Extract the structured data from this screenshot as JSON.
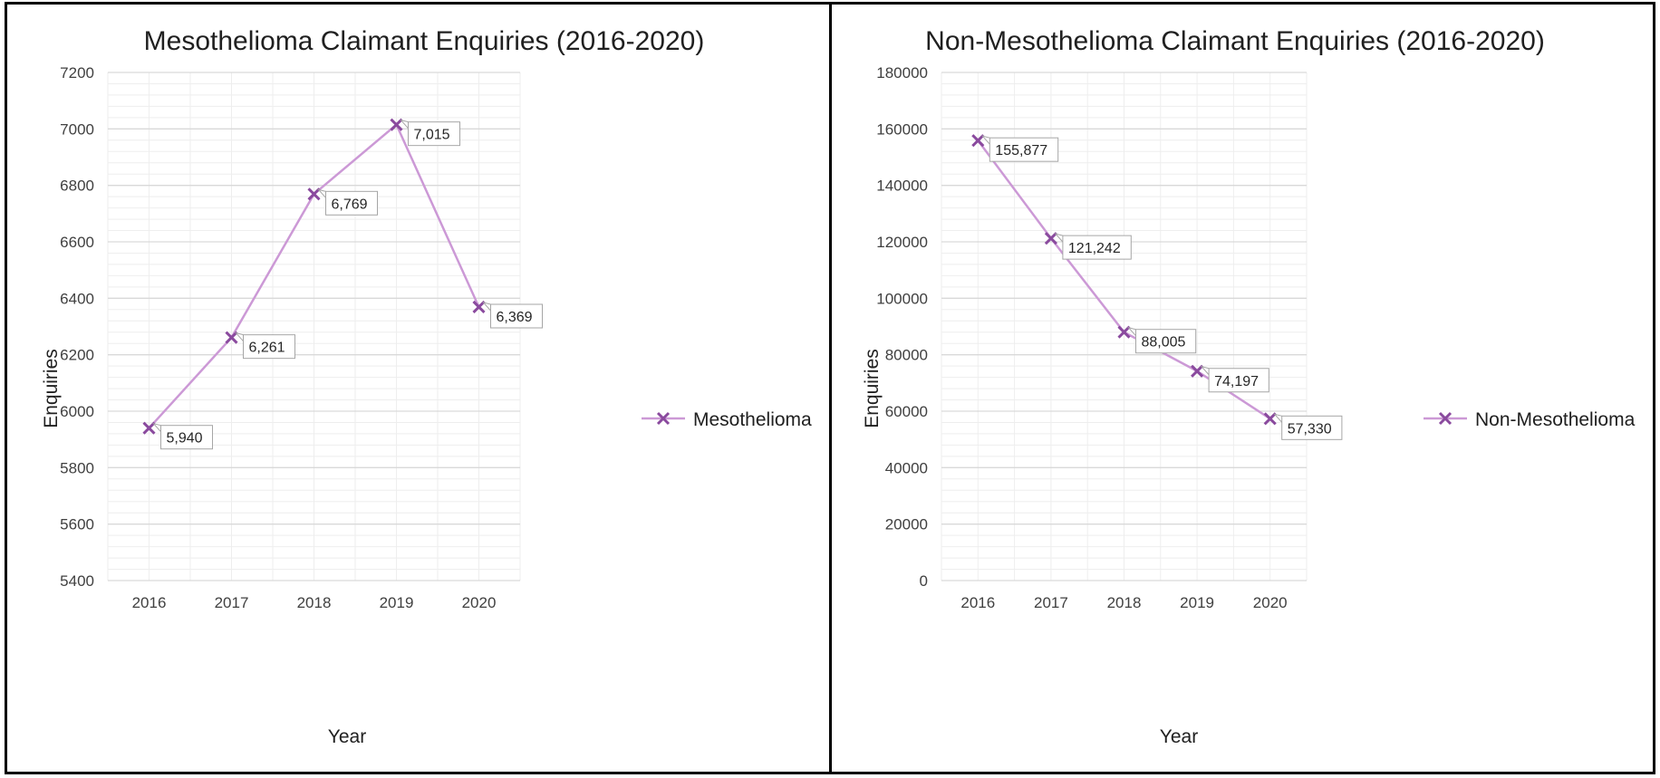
{
  "chart_data": [
    {
      "type": "line",
      "title": "Mesothelioma Claimant Enquiries (2016-2020)",
      "xlabel": "Year",
      "ylabel": "Enquiries",
      "categories": [
        "2016",
        "2017",
        "2018",
        "2019",
        "2020"
      ],
      "series": [
        {
          "name": "Mesothelioma",
          "values": [
            5940,
            6261,
            6769,
            7015,
            6369
          ],
          "labels": [
            "5,940",
            "6,261",
            "6,769",
            "7,015",
            "6,369"
          ]
        }
      ],
      "ylim": [
        5400,
        7200
      ],
      "yticks": [
        "5400",
        "5600",
        "5800",
        "6000",
        "6200",
        "6400",
        "6600",
        "6800",
        "7000",
        "7200"
      ],
      "grid": true,
      "legend": "right",
      "colors": {
        "line": "#cc99d6",
        "marker": "#8a4a9e",
        "grid": "#d9d9d9",
        "grid_minor": "#eeeeee"
      }
    },
    {
      "type": "line",
      "title": "Non-Mesothelioma Claimant Enquiries (2016-2020)",
      "xlabel": "Year",
      "ylabel": "Enquiries",
      "categories": [
        "2016",
        "2017",
        "2018",
        "2019",
        "2020"
      ],
      "series": [
        {
          "name": "Non-Mesothelioma",
          "values": [
            155877,
            121242,
            88005,
            74197,
            57330
          ],
          "labels": [
            "155,877",
            "121,242",
            "88,005",
            "74,197",
            "57,330"
          ]
        }
      ],
      "ylim": [
        0,
        180000
      ],
      "yticks": [
        "0",
        "20000",
        "40000",
        "60000",
        "80000",
        "100000",
        "120000",
        "140000",
        "160000",
        "180000"
      ],
      "grid": true,
      "legend": "right",
      "colors": {
        "line": "#cc99d6",
        "marker": "#8a4a9e",
        "grid": "#d9d9d9",
        "grid_minor": "#eeeeee"
      }
    }
  ]
}
